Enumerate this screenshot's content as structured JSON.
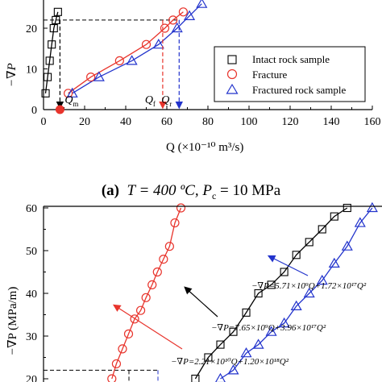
{
  "caption": {
    "letter": "(a)",
    "text_t": "T = 400 ºC, ",
    "text_p": "P",
    "text_psub": "c",
    "text_rest": " = 10 MPa"
  },
  "chart_data": [
    {
      "type": "scatter",
      "panel": "a",
      "ylabel": "−∇P",
      "xlabel": "Q (×10⁻¹⁰ m³/s)",
      "xlim": [
        0,
        160
      ],
      "ylim": [
        0,
        25
      ],
      "xticks": [
        "0",
        "20",
        "40",
        "60",
        "80",
        "100",
        "120",
        "140",
        "160"
      ],
      "yticks": [
        "0",
        "10",
        "20"
      ],
      "legend_position": "inside-right",
      "series": [
        {
          "name": "Intact rock sample",
          "marker": "square",
          "color": "#000000",
          "x": [
            1,
            2,
            3,
            4,
            5,
            6,
            7
          ],
          "y": [
            4,
            8,
            12,
            16,
            20,
            22,
            24
          ]
        },
        {
          "name": "Fracture",
          "marker": "circle",
          "color": "#e8342c",
          "x": [
            12,
            23,
            37,
            50,
            59,
            63,
            68
          ],
          "y": [
            4,
            8,
            12,
            16,
            20,
            22,
            24
          ]
        },
        {
          "name": "Fractured rock sample",
          "marker": "triangle",
          "color": "#2233cc",
          "x": [
            14,
            27,
            43,
            56,
            65,
            71,
            77
          ],
          "y": [
            4,
            8,
            12,
            16,
            20,
            23,
            26
          ]
        }
      ],
      "annotations": [
        {
          "label": "Q",
          "sub": "m",
          "x": 8,
          "y": 22
        },
        {
          "label": "Q",
          "sub": "f",
          "x": 58,
          "y": 22
        },
        {
          "label": "Q",
          "sub": "r",
          "x": 66,
          "y": 22
        }
      ],
      "reference_y": 22
    },
    {
      "type": "scatter",
      "panel": "b",
      "ylabel": "−∇P (MPa/m)",
      "ylim": [
        20,
        60
      ],
      "yticks": [
        "20",
        "30",
        "40",
        "50",
        "60"
      ],
      "series": [
        {
          "marker": "circle",
          "color": "#e8342c",
          "x": [
            9.0,
            9.6,
            10.4,
            11.2,
            12.0,
            12.8,
            13.5,
            14.3,
            15.0,
            15.8,
            16.6,
            17.3,
            18.1
          ],
          "y": [
            20,
            23.5,
            27,
            30.5,
            34,
            36,
            39,
            42,
            45,
            48,
            51,
            56.5,
            60
          ]
        },
        {
          "marker": "square",
          "color": "#000000",
          "x": [
            20.0,
            21.7,
            23.3,
            25.0,
            26.7,
            28.3,
            30.0,
            31.7,
            33.3,
            35.0,
            36.7,
            38.3,
            40.0
          ],
          "y": [
            20,
            25,
            28,
            31,
            35.5,
            40,
            42,
            45,
            49,
            52,
            55,
            58,
            60
          ]
        },
        {
          "marker": "triangle",
          "color": "#2233cc",
          "x": [
            23.3,
            25.0,
            26.7,
            28.3,
            30.0,
            31.7,
            33.3,
            35.0,
            36.7,
            38.3,
            40.0,
            41.7,
            43.3
          ],
          "y": [
            20,
            22,
            26,
            28,
            31,
            33,
            37,
            40,
            43,
            47,
            51,
            56.5,
            60
          ]
        }
      ],
      "annotations": [
        {
          "text": "−∇P=5.71×10⁹Q+1.72×10¹⁷Q²"
        },
        {
          "text": "−∇P=7.65×10⁹Q+3.96×10¹⁷Q²"
        },
        {
          "text": "−∇P=2.21×10¹⁰Q+1.20×10¹⁸Q²"
        }
      ],
      "reference_y": 22
    }
  ]
}
